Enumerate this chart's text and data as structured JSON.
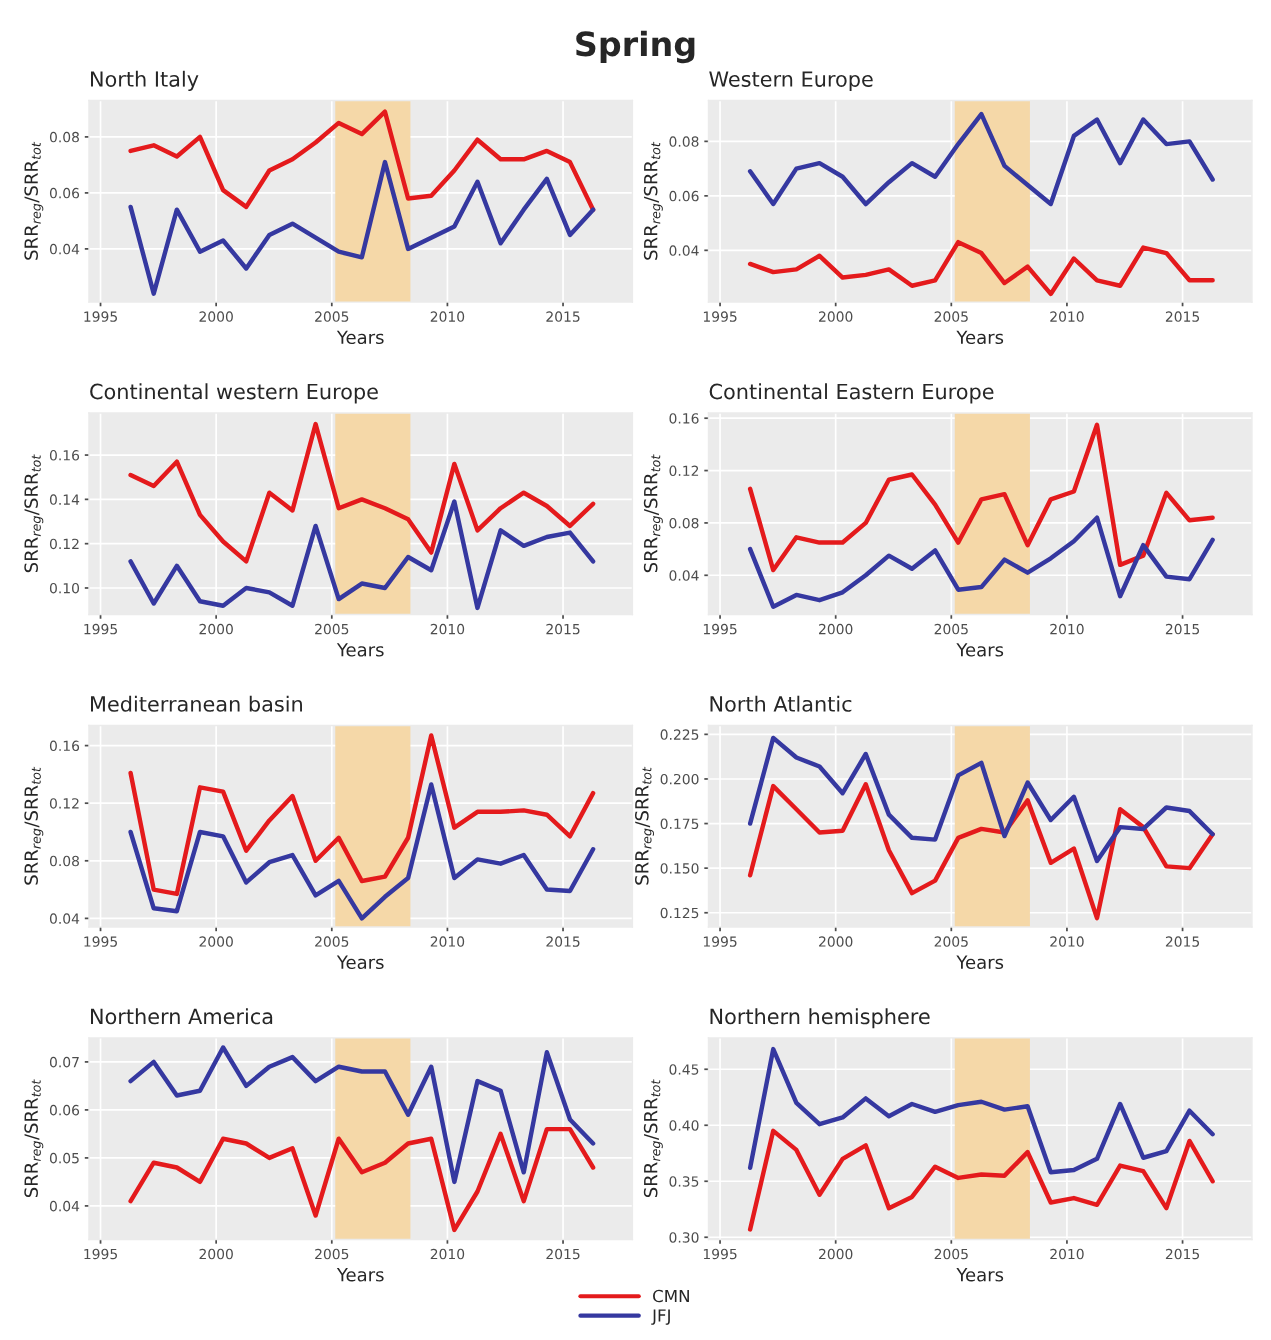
{
  "chart_data": [
    {
      "type": "line",
      "title": "North Italy",
      "xlabel": "Years",
      "ylabel": "SRR$_{reg}$/SRR$_{tot}$",
      "annotations": [
        "Spring"
      ],
      "grid": true,
      "legend": "bottom",
      "x": [
        1996.3,
        1997.3,
        1998.3,
        1999.3,
        2000.3,
        2001.3,
        2002.3,
        2003.3,
        2004.3,
        2005.3,
        2006.3,
        2007.3,
        2008.3,
        2009.3,
        2010.3,
        2011.3,
        2012.3,
        2013.3,
        2014.3,
        2015.3,
        2016.3
      ],
      "xlim": [
        1994.5,
        2018.0
      ],
      "xticks": [
        1995,
        2000,
        2005,
        2010,
        2015
      ],
      "ylim": [
        0.021,
        0.093
      ],
      "yticks": [
        {
          "value": 0.04,
          "label": "0.04"
        },
        {
          "value": 0.06,
          "label": "0.06"
        },
        {
          "value": 0.08,
          "label": "0.08"
        }
      ],
      "bands": [
        {
          "axis": "x",
          "from": 2005.15,
          "to": 2008.4,
          "color": "#f5d8a8"
        }
      ],
      "series": [
        {
          "name": "CMN",
          "color": "#e41a1c",
          "values": [
            0.075,
            0.077,
            0.073,
            0.08,
            0.061,
            0.055,
            0.068,
            0.072,
            0.078,
            0.085,
            0.081,
            0.089,
            0.058,
            0.059,
            0.068,
            0.079,
            0.072,
            0.072,
            0.075,
            0.071,
            0.054
          ]
        },
        {
          "name": "JFJ",
          "color": "#3538a0",
          "values": [
            0.055,
            0.024,
            0.054,
            0.039,
            0.043,
            0.033,
            0.045,
            0.049,
            0.044,
            0.039,
            0.037,
            0.071,
            0.04,
            0.044,
            0.048,
            0.064,
            0.042,
            0.054,
            0.065,
            0.045,
            0.054
          ]
        }
      ]
    },
    {
      "type": "line",
      "title": "Western Europe",
      "xlabel": "Years",
      "ylabel": "SRR$_{reg}$/SRR$_{tot}$",
      "grid": true,
      "x": [
        1996.3,
        1997.3,
        1998.3,
        1999.3,
        2000.3,
        2001.3,
        2002.3,
        2003.3,
        2004.3,
        2005.3,
        2006.3,
        2007.3,
        2008.3,
        2009.3,
        2010.3,
        2011.3,
        2012.3,
        2013.3,
        2014.3,
        2015.3,
        2016.3
      ],
      "xlim": [
        1994.5,
        2018.0
      ],
      "xticks": [
        1995,
        2000,
        2005,
        2010,
        2015
      ],
      "ylim": [
        0.021,
        0.095
      ],
      "yticks": [
        {
          "value": 0.04,
          "label": "0.04"
        },
        {
          "value": 0.06,
          "label": "0.06"
        },
        {
          "value": 0.08,
          "label": "0.08"
        }
      ],
      "bands": [
        {
          "axis": "x",
          "from": 2005.15,
          "to": 2008.4,
          "color": "#f5d8a8"
        }
      ],
      "series": [
        {
          "color": "#e41a1c",
          "values": [
            0.035,
            0.032,
            0.033,
            0.038,
            0.03,
            0.031,
            0.033,
            0.027,
            0.029,
            0.043,
            0.039,
            0.028,
            0.034,
            0.024,
            0.037,
            0.029,
            0.027,
            0.041,
            0.039,
            0.029,
            0.029
          ]
        },
        {
          "color": "#3538a0",
          "values": [
            0.069,
            0.057,
            0.07,
            0.072,
            0.067,
            0.057,
            0.065,
            0.072,
            0.067,
            0.079,
            0.09,
            0.071,
            0.064,
            0.057,
            0.082,
            0.088,
            0.072,
            0.088,
            0.079,
            0.08,
            0.066
          ]
        }
      ]
    },
    {
      "type": "line",
      "title": "Continental western Europe",
      "xlabel": "Years",
      "ylabel": "SRR$_{reg}$/SRR$_{tot}$",
      "grid": true,
      "x": [
        1996.3,
        1997.3,
        1998.3,
        1999.3,
        2000.3,
        2001.3,
        2002.3,
        2003.3,
        2004.3,
        2005.3,
        2006.3,
        2007.3,
        2008.3,
        2009.3,
        2010.3,
        2011.3,
        2012.3,
        2013.3,
        2014.3,
        2015.3,
        2016.3
      ],
      "xlim": [
        1994.5,
        2018.0
      ],
      "xticks": [
        1995,
        2000,
        2005,
        2010,
        2015
      ],
      "ylim": [
        0.088,
        0.179
      ],
      "yticks": [
        {
          "value": 0.1,
          "label": "0.10"
        },
        {
          "value": 0.12,
          "label": "0.12"
        },
        {
          "value": 0.14,
          "label": "0.14"
        },
        {
          "value": 0.16,
          "label": "0.16"
        }
      ],
      "bands": [
        {
          "axis": "x",
          "from": 2005.15,
          "to": 2008.4,
          "color": "#f5d8a8"
        }
      ],
      "series": [
        {
          "color": "#e41a1c",
          "values": [
            0.151,
            0.146,
            0.157,
            0.133,
            0.121,
            0.112,
            0.143,
            0.135,
            0.174,
            0.136,
            0.14,
            0.136,
            0.131,
            0.116,
            0.156,
            0.126,
            0.136,
            0.143,
            0.137,
            0.128,
            0.138
          ]
        },
        {
          "color": "#3538a0",
          "values": [
            0.112,
            0.093,
            0.11,
            0.094,
            0.092,
            0.1,
            0.098,
            0.092,
            0.128,
            0.095,
            0.102,
            0.1,
            0.114,
            0.108,
            0.139,
            0.091,
            0.126,
            0.119,
            0.123,
            0.125,
            0.112
          ]
        }
      ]
    },
    {
      "type": "line",
      "title": "Continental Eastern Europe",
      "xlabel": "Years",
      "ylabel": "SRR$_{reg}$/SRR$_{tot}$",
      "grid": true,
      "x": [
        1996.3,
        1997.3,
        1998.3,
        1999.3,
        2000.3,
        2001.3,
        2002.3,
        2003.3,
        2004.3,
        2005.3,
        2006.3,
        2007.3,
        2008.3,
        2009.3,
        2010.3,
        2011.3,
        2012.3,
        2013.3,
        2014.3,
        2015.3,
        2016.3
      ],
      "xlim": [
        1994.5,
        2018.0
      ],
      "xticks": [
        1995,
        2000,
        2005,
        2010,
        2015
      ],
      "ylim": [
        0.01,
        0.164
      ],
      "yticks": [
        {
          "value": 0.04,
          "label": "0.04"
        },
        {
          "value": 0.08,
          "label": "0.08"
        },
        {
          "value": 0.12,
          "label": "0.12"
        },
        {
          "value": 0.16,
          "label": "0.16"
        }
      ],
      "bands": [
        {
          "axis": "x",
          "from": 2005.15,
          "to": 2008.4,
          "color": "#f5d8a8"
        }
      ],
      "series": [
        {
          "color": "#e41a1c",
          "values": [
            0.106,
            0.044,
            0.069,
            0.065,
            0.065,
            0.08,
            0.113,
            0.117,
            0.094,
            0.065,
            0.098,
            0.102,
            0.063,
            0.098,
            0.104,
            0.155,
            0.048,
            0.055,
            0.103,
            0.082,
            0.084
          ]
        },
        {
          "color": "#3538a0",
          "values": [
            0.06,
            0.016,
            0.025,
            0.021,
            0.027,
            0.04,
            0.055,
            0.045,
            0.059,
            0.029,
            0.031,
            0.052,
            0.042,
            0.053,
            0.066,
            0.084,
            0.024,
            0.063,
            0.039,
            0.037,
            0.067
          ]
        }
      ]
    },
    {
      "type": "line",
      "title": "Mediterranean basin",
      "xlabel": "Years",
      "ylabel": "SRR$_{reg}$/SRR$_{tot}$",
      "grid": true,
      "x": [
        1996.3,
        1997.3,
        1998.3,
        1999.3,
        2000.3,
        2001.3,
        2002.3,
        2003.3,
        2004.3,
        2005.3,
        2006.3,
        2007.3,
        2008.3,
        2009.3,
        2010.3,
        2011.3,
        2012.3,
        2013.3,
        2014.3,
        2015.3,
        2016.3
      ],
      "xlim": [
        1994.5,
        2018.0
      ],
      "xticks": [
        1995,
        2000,
        2005,
        2010,
        2015
      ],
      "ylim": [
        0.034,
        0.174
      ],
      "yticks": [
        {
          "value": 0.04,
          "label": "0.04"
        },
        {
          "value": 0.08,
          "label": "0.08"
        },
        {
          "value": 0.12,
          "label": "0.12"
        },
        {
          "value": 0.16,
          "label": "0.16"
        }
      ],
      "bands": [
        {
          "axis": "x",
          "from": 2005.15,
          "to": 2008.4,
          "color": "#f5d8a8"
        }
      ],
      "series": [
        {
          "color": "#e41a1c",
          "values": [
            0.141,
            0.06,
            0.057,
            0.131,
            0.128,
            0.087,
            0.108,
            0.125,
            0.08,
            0.096,
            0.066,
            0.069,
            0.096,
            0.167,
            0.103,
            0.114,
            0.114,
            0.115,
            0.112,
            0.097,
            0.127
          ]
        },
        {
          "color": "#3538a0",
          "values": [
            0.1,
            0.047,
            0.045,
            0.1,
            0.097,
            0.065,
            0.079,
            0.084,
            0.056,
            0.066,
            0.04,
            0.055,
            0.068,
            0.133,
            0.068,
            0.081,
            0.078,
            0.084,
            0.06,
            0.059,
            0.088
          ]
        }
      ]
    },
    {
      "type": "line",
      "title": "North Atlantic",
      "xlabel": "Years",
      "ylabel": "SRR$_{reg}$/SRR$_{tot}$",
      "grid": true,
      "x": [
        1996.3,
        1997.3,
        1998.3,
        1999.3,
        2000.3,
        2001.3,
        2002.3,
        2003.3,
        2004.3,
        2005.3,
        2006.3,
        2007.3,
        2008.3,
        2009.3,
        2010.3,
        2011.3,
        2012.3,
        2013.3,
        2014.3,
        2015.3,
        2016.3
      ],
      "xlim": [
        1994.5,
        2018.0
      ],
      "xticks": [
        1995,
        2000,
        2005,
        2010,
        2015
      ],
      "ylim": [
        0.117,
        0.23
      ],
      "yticks": [
        {
          "value": 0.125,
          "label": "0.125"
        },
        {
          "value": 0.15,
          "label": "0.150"
        },
        {
          "value": 0.175,
          "label": "0.175"
        },
        {
          "value": 0.2,
          "label": "0.200"
        },
        {
          "value": 0.225,
          "label": "0.225"
        }
      ],
      "bands": [
        {
          "axis": "x",
          "from": 2005.15,
          "to": 2008.4,
          "color": "#f5d8a8"
        }
      ],
      "series": [
        {
          "color": "#e41a1c",
          "values": [
            0.146,
            0.196,
            0.183,
            0.17,
            0.171,
            0.197,
            0.16,
            0.136,
            0.143,
            0.167,
            0.172,
            0.17,
            0.188,
            0.153,
            0.161,
            0.122,
            0.183,
            0.173,
            0.151,
            0.15,
            0.169
          ]
        },
        {
          "color": "#3538a0",
          "values": [
            0.175,
            0.223,
            0.212,
            0.207,
            0.192,
            0.214,
            0.18,
            0.167,
            0.166,
            0.202,
            0.209,
            0.168,
            0.198,
            0.177,
            0.19,
            0.154,
            0.173,
            0.172,
            0.184,
            0.182,
            0.169
          ]
        }
      ]
    },
    {
      "type": "line",
      "title": "Northern America",
      "xlabel": "Years",
      "ylabel": "SRR$_{reg}$/SRR$_{tot}$",
      "grid": true,
      "x": [
        1996.3,
        1997.3,
        1998.3,
        1999.3,
        2000.3,
        2001.3,
        2002.3,
        2003.3,
        2004.3,
        2005.3,
        2006.3,
        2007.3,
        2008.3,
        2009.3,
        2010.3,
        2011.3,
        2012.3,
        2013.3,
        2014.3,
        2015.3,
        2016.3
      ],
      "xlim": [
        1994.5,
        2018.0
      ],
      "xticks": [
        1995,
        2000,
        2005,
        2010,
        2015
      ],
      "ylim": [
        0.033,
        0.075
      ],
      "yticks": [
        {
          "value": 0.04,
          "label": "0.04"
        },
        {
          "value": 0.05,
          "label": "0.05"
        },
        {
          "value": 0.06,
          "label": "0.06"
        },
        {
          "value": 0.07,
          "label": "0.07"
        }
      ],
      "bands": [
        {
          "axis": "x",
          "from": 2005.15,
          "to": 2008.4,
          "color": "#f5d8a8"
        }
      ],
      "series": [
        {
          "color": "#e41a1c",
          "values": [
            0.041,
            0.049,
            0.048,
            0.045,
            0.054,
            0.053,
            0.05,
            0.052,
            0.038,
            0.054,
            0.047,
            0.049,
            0.053,
            0.054,
            0.035,
            0.043,
            0.055,
            0.041,
            0.056,
            0.056,
            0.048
          ]
        },
        {
          "color": "#3538a0",
          "values": [
            0.066,
            0.07,
            0.063,
            0.064,
            0.073,
            0.065,
            0.069,
            0.071,
            0.066,
            0.069,
            0.068,
            0.068,
            0.059,
            0.069,
            0.045,
            0.066,
            0.064,
            0.047,
            0.072,
            0.058,
            0.053
          ]
        }
      ]
    },
    {
      "type": "line",
      "title": "Northern hemisphere",
      "xlabel": "Years",
      "ylabel": "SRR$_{reg}$/SRR$_{tot}$",
      "grid": true,
      "x": [
        1996.3,
        1997.3,
        1998.3,
        1999.3,
        2000.3,
        2001.3,
        2002.3,
        2003.3,
        2004.3,
        2005.3,
        2006.3,
        2007.3,
        2008.3,
        2009.3,
        2010.3,
        2011.3,
        2012.3,
        2013.3,
        2014.3,
        2015.3,
        2016.3
      ],
      "xlim": [
        1994.5,
        2018.0
      ],
      "xticks": [
        1995,
        2000,
        2005,
        2010,
        2015
      ],
      "ylim": [
        0.298,
        0.478
      ],
      "yticks": [
        {
          "value": 0.3,
          "label": "0.30"
        },
        {
          "value": 0.35,
          "label": "0.35"
        },
        {
          "value": 0.4,
          "label": "0.40"
        },
        {
          "value": 0.45,
          "label": "0.45"
        }
      ],
      "bands": [
        {
          "axis": "x",
          "from": 2005.15,
          "to": 2008.4,
          "color": "#f5d8a8"
        }
      ],
      "series": [
        {
          "color": "#e41a1c",
          "values": [
            0.307,
            0.395,
            0.378,
            0.338,
            0.37,
            0.382,
            0.326,
            0.336,
            0.363,
            0.353,
            0.356,
            0.355,
            0.376,
            0.331,
            0.335,
            0.329,
            0.364,
            0.359,
            0.326,
            0.386,
            0.35
          ]
        },
        {
          "color": "#3538a0",
          "values": [
            0.362,
            0.468,
            0.42,
            0.401,
            0.407,
            0.424,
            0.408,
            0.419,
            0.412,
            0.418,
            0.421,
            0.414,
            0.417,
            0.358,
            0.36,
            0.37,
            0.419,
            0.371,
            0.377,
            0.413,
            0.392
          ]
        }
      ]
    }
  ]
}
